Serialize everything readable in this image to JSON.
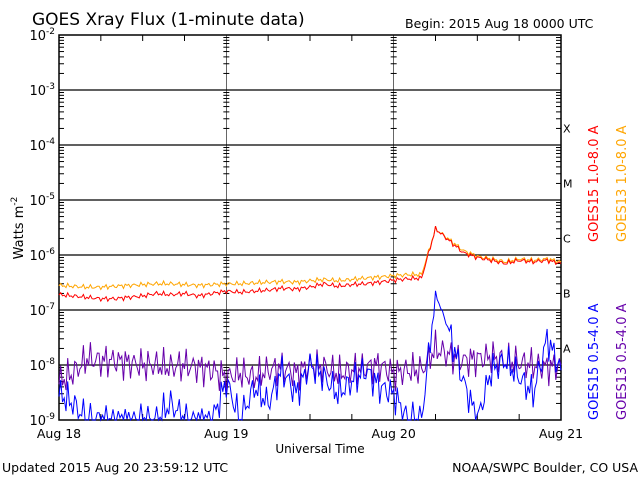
{
  "chart_data": {
    "type": "line",
    "title": "GOES Xray Flux (1-minute data)",
    "begin": "Begin:  2015 Aug 18 0000 UTC",
    "xlabel": "Universal Time",
    "ylabel": "Watts m",
    "ylabel_sup": "-2",
    "y_scale": "log",
    "ylim": [
      1e-09,
      0.01
    ],
    "y_ticks": [
      {
        "base": "10",
        "exp": "-2"
      },
      {
        "base": "10",
        "exp": "-3"
      },
      {
        "base": "10",
        "exp": "-4"
      },
      {
        "base": "10",
        "exp": "-5"
      },
      {
        "base": "10",
        "exp": "-6"
      },
      {
        "base": "10",
        "exp": "-7"
      },
      {
        "base": "10",
        "exp": "-8"
      },
      {
        "base": "10",
        "exp": "-9"
      }
    ],
    "x_ticks": [
      "Aug 18",
      "Aug 19",
      "Aug 20",
      "Aug 21"
    ],
    "xlim_hours": [
      0,
      72
    ],
    "flare_classes": [
      "A",
      "B",
      "C",
      "M",
      "X"
    ],
    "hours": [
      0,
      2,
      4,
      6,
      8,
      10,
      12,
      14,
      16,
      18,
      20,
      22,
      24,
      26,
      28,
      30,
      32,
      34,
      36,
      38,
      40,
      42,
      44,
      46,
      48,
      50,
      52,
      54,
      56,
      58,
      60,
      62,
      64,
      66,
      68,
      70,
      72
    ],
    "series": [
      {
        "name": "GOES15 1.0-8.0 A",
        "color": "#ff0000",
        "values": [
          1.9e-07,
          1.8e-07,
          1.7e-07,
          1.6e-07,
          1.6e-07,
          1.7e-07,
          1.8e-07,
          2e-07,
          1.9e-07,
          2e-07,
          1.8e-07,
          2e-07,
          2.2e-07,
          2.1e-07,
          2.2e-07,
          2.3e-07,
          2.5e-07,
          2.4e-07,
          2.6e-07,
          3e-07,
          2.7e-07,
          2.9e-07,
          3e-07,
          3.2e-07,
          3.5e-07,
          3.7e-07,
          3.8e-07,
          3e-06,
          1.8e-06,
          1.1e-06,
          9e-07,
          8e-07,
          7e-07,
          8e-07,
          7.5e-07,
          8e-07,
          7e-07
        ]
      },
      {
        "name": "GOES13 1.0-8.0 A",
        "color": "#ffa500",
        "values": [
          2.8e-07,
          2.7e-07,
          2.6e-07,
          2.6e-07,
          2.7e-07,
          2.8e-07,
          2.9e-07,
          3e-07,
          3e-07,
          2.9e-07,
          2.8e-07,
          2.9e-07,
          3e-07,
          3e-07,
          3.1e-07,
          3.2e-07,
          3.3e-07,
          3.2e-07,
          3.4e-07,
          3.6e-07,
          3.4e-07,
          3.6e-07,
          3.8e-07,
          4e-07,
          4.2e-07,
          4.4e-07,
          4.4e-07,
          3e-06,
          1.9e-06,
          1.2e-06,
          9.5e-07,
          8.5e-07,
          7.5e-07,
          8.5e-07,
          8e-07,
          8.5e-07,
          7.5e-07
        ]
      },
      {
        "name": "GOES15 0.5-4.0 A",
        "color": "#0000ff",
        "values": [
          3e-09,
          2e-09,
          1e-09,
          1e-09,
          1e-09,
          1e-09,
          1e-09,
          1e-09,
          2e-09,
          1e-09,
          1e-09,
          1e-09,
          5e-09,
          1e-09,
          4e-09,
          2e-09,
          8e-09,
          3e-09,
          1e-08,
          6e-09,
          3e-09,
          5e-09,
          8e-09,
          4e-09,
          3e-09,
          1e-09,
          1e-09,
          2e-07,
          4e-08,
          5e-09,
          1e-09,
          8e-09,
          1.2e-08,
          6e-09,
          3e-09,
          3e-08,
          8e-09
        ]
      },
      {
        "name": "GOES13 0.5-4.0 A",
        "color": "#6600aa",
        "values": [
          5e-09,
          7e-09,
          1.3e-08,
          1.2e-08,
          1.2e-08,
          1.1e-08,
          1e-08,
          1e-08,
          9e-09,
          1e-08,
          9e-09,
          8e-09,
          6e-09,
          7e-09,
          6e-09,
          8e-09,
          9e-09,
          7e-09,
          1e-08,
          9e-09,
          7e-09,
          8e-09,
          9e-09,
          1e-08,
          7e-09,
          8e-09,
          8e-09,
          2e-08,
          1.5e-08,
          1.2e-08,
          1.3e-08,
          1.4e-08,
          1.2e-08,
          1.1e-08,
          1e-08,
          9e-09,
          1e-08
        ]
      }
    ]
  },
  "footer": {
    "updated": "Updated 2015 Aug 20 23:59:12 UTC",
    "credit": "NOAA/SWPC Boulder, CO USA"
  }
}
